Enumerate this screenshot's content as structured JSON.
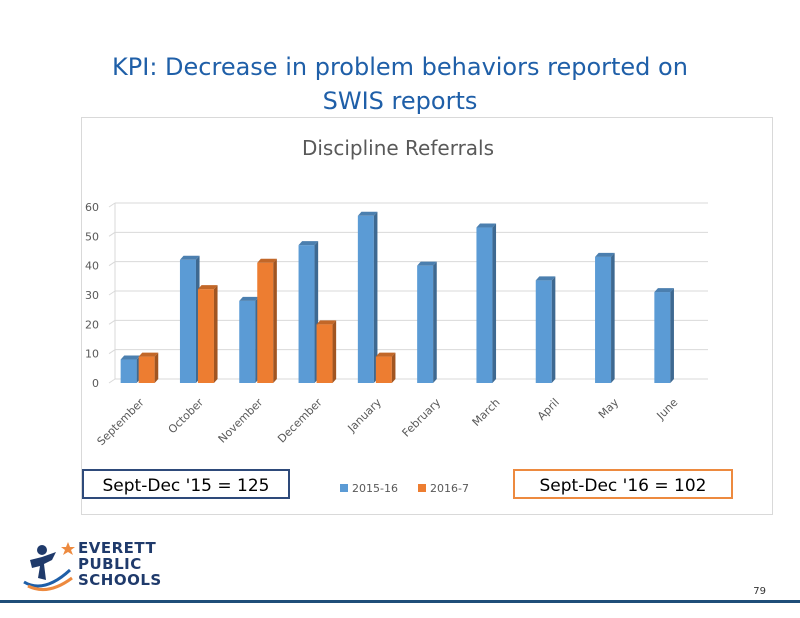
{
  "slide": {
    "title_line1": "KPI: Decrease in problem behaviors reported on",
    "title_line2": "SWIS reports",
    "callout_left": "Sept-Dec '15 = 125",
    "callout_right": "Sept-Dec '16 = 102",
    "page_number": "79"
  },
  "logo": {
    "line1": "EVERETT",
    "line2": "PUBLIC",
    "line3": "SCHOOLS"
  },
  "chart_data": {
    "type": "bar",
    "title": "Discipline Referrals",
    "categories": [
      "September",
      "October",
      "November",
      "December",
      "January",
      "February",
      "March",
      "April",
      "May",
      "June"
    ],
    "series": [
      {
        "name": "2015-16",
        "color": "#5b9bd5",
        "values": [
          8,
          42,
          28,
          47,
          57,
          40,
          53,
          35,
          43,
          31
        ]
      },
      {
        "name": "2016-7",
        "color": "#ed7d31",
        "values": [
          9,
          32,
          41,
          20,
          9,
          null,
          null,
          null,
          null,
          null
        ]
      }
    ],
    "yticks": [
      0,
      10,
      20,
      30,
      40,
      50,
      60
    ],
    "ylim": [
      0,
      60
    ],
    "grid": true,
    "legend_position": "bottom"
  }
}
